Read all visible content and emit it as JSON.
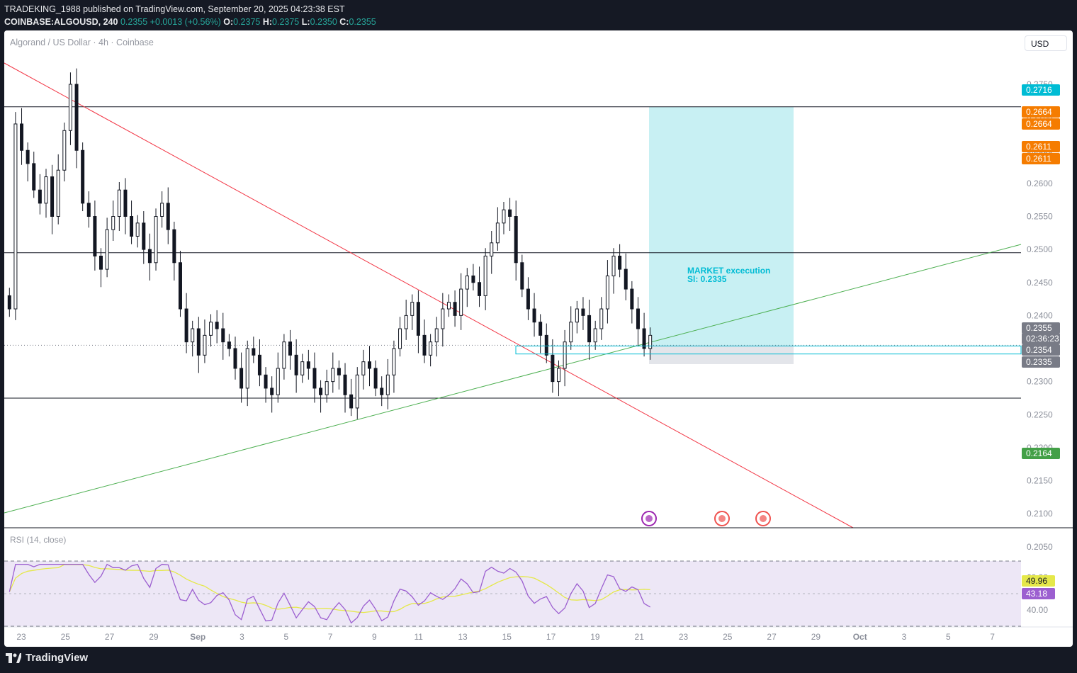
{
  "header": {
    "published": "TRADEKING_1988 published on TradingView.com, September 20, 2025 04:23:38 EST",
    "symbol": "COINBASE:ALGOUSD, 240",
    "last": "0.2355",
    "change": "+0.0013 (+0.56%)",
    "o_label": "O:",
    "o_value": "0.2375",
    "h_label": "H:",
    "h_value": "0.2375",
    "l_label": "L:",
    "l_value": "0.2350",
    "c_label": "C:",
    "c_value": "0.2355"
  },
  "chart": {
    "symbol_label": "Algorand / US Dollar · 4h · Coinbase",
    "currency_button": "USD",
    "rsi_label": "RSI (14, close)",
    "annotation_line1": "MARKET  excecution",
    "annotation_line2": "Sl: 0.2335"
  },
  "footer": {
    "brand": "TradingView"
  },
  "colors": {
    "bull": "#26a69a",
    "bear": "#ef5350",
    "candle": "#131722",
    "trend_down": "#f23645",
    "trend_up": "#4caf50",
    "target_zone": "#c8f0f3",
    "entry_box": "#00bcd4",
    "rsi_line": "#9c5fd0",
    "rsi_ma": "#e5e84a",
    "rsi_band": "#ede7f6"
  },
  "chart_data": {
    "type": "candlestick",
    "price_axis_ticks": [
      "0.2750",
      "0.2700",
      "0.2650",
      "0.2600",
      "0.2550",
      "0.2500",
      "0.2450",
      "0.2400",
      "0.2350",
      "0.2300",
      "0.2250",
      "0.2200",
      "0.2150",
      "0.2100",
      "0.2050"
    ],
    "time_axis_ticks": [
      "23",
      "25",
      "27",
      "29",
      "Sep",
      "3",
      "5",
      "7",
      "9",
      "11",
      "13",
      "15",
      "17",
      "19",
      "21",
      "23",
      "25",
      "27",
      "29",
      "Oct",
      "3",
      "5",
      "7"
    ],
    "horizontal_levels": [
      0.2716,
      0.2495,
      0.2275
    ],
    "price_tags": [
      {
        "value": "0.2716",
        "color": "#00bcd4"
      },
      {
        "value": "0.2664",
        "color": "#f57c00"
      },
      {
        "value": "0.2664",
        "color": "#f57c00"
      },
      {
        "value": "0.2611",
        "color": "#f57c00"
      },
      {
        "value": "0.2611",
        "color": "#f57c00"
      },
      {
        "value": "0.2355",
        "color": "#787b86"
      },
      {
        "value": "02:36:23",
        "color": "#787b86"
      },
      {
        "value": "0.2354",
        "color": "#787b86"
      },
      {
        "value": "0.2335",
        "color": "#787b86"
      },
      {
        "value": "0.2164",
        "color": "#43a047"
      }
    ],
    "position": {
      "entry": 0.2355,
      "stop": 0.2335,
      "target": 0.2716
    },
    "entry_band": [
      0.2345,
      0.2355
    ],
    "rsi": {
      "ticks": [
        "60.00",
        "40.00"
      ],
      "value": "43.18",
      "ma_value": "49.96",
      "band": [
        70,
        30
      ]
    },
    "ohlc_close_path": [
      0.241,
      0.269,
      0.265,
      0.263,
      0.259,
      0.257,
      0.261,
      0.255,
      0.262,
      0.268,
      0.275,
      0.265,
      0.257,
      0.255,
      0.249,
      0.247,
      0.253,
      0.255,
      0.259,
      0.255,
      0.252,
      0.254,
      0.25,
      0.248,
      0.255,
      0.257,
      0.253,
      0.248,
      0.241,
      0.236,
      0.238,
      0.234,
      0.237,
      0.239,
      0.238,
      0.236,
      0.235,
      0.232,
      0.229,
      0.235,
      0.234,
      0.231,
      0.229,
      0.228,
      0.232,
      0.236,
      0.234,
      0.231,
      0.233,
      0.232,
      0.229,
      0.228,
      0.23,
      0.232,
      0.231,
      0.228,
      0.226,
      0.231,
      0.233,
      0.232,
      0.229,
      0.228,
      0.231,
      0.235,
      0.238,
      0.24,
      0.242,
      0.237,
      0.234,
      0.236,
      0.238,
      0.241,
      0.242,
      0.24,
      0.244,
      0.246,
      0.245,
      0.243,
      0.249,
      0.251,
      0.254,
      0.256,
      0.255,
      0.248,
      0.244,
      0.241,
      0.239,
      0.237,
      0.234,
      0.23,
      0.232,
      0.236,
      0.239,
      0.241,
      0.24,
      0.236,
      0.238,
      0.241,
      0.246,
      0.249,
      0.247,
      0.244,
      0.241,
      0.238,
      0.235,
      0.237
    ]
  }
}
